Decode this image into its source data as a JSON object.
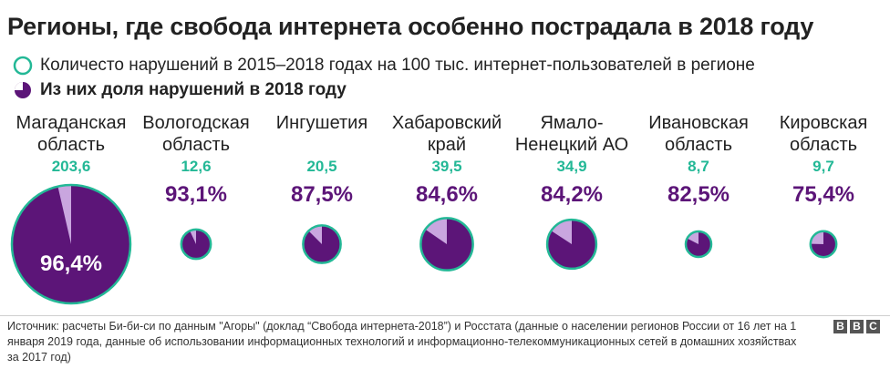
{
  "title": "Регионы, где свобода интернета особенно пострадала в 2018 году",
  "legend": {
    "total_label": "Количесто нарушений в 2015–2018 годах на 100 тыс. интернет-пользователей в регионе",
    "share_label": "Из них доля нарушений в 2018 году"
  },
  "colors": {
    "accent_teal": "#23b896",
    "purple": "#5c1578",
    "light_purple": "#c9a6df"
  },
  "chart_data": {
    "type": "pie",
    "categories": [
      "Магаданская область",
      "Вологодская область",
      "Ингушетия",
      "Хабаровский край",
      "Ямало-Ненецкий АО",
      "Ивановская область",
      "Кировская область"
    ],
    "regions": [
      {
        "name_lines": [
          "Магаданская",
          "область"
        ],
        "total": "203,6",
        "share": "96,4%",
        "total_value": 203.6,
        "share_value": 96.4
      },
      {
        "name_lines": [
          "Вологодская",
          "область"
        ],
        "total": "12,6",
        "share": "93,1%",
        "total_value": 12.6,
        "share_value": 93.1
      },
      {
        "name_lines": [
          "Ингушетия"
        ],
        "total": "20,5",
        "share": "87,5%",
        "total_value": 20.5,
        "share_value": 87.5
      },
      {
        "name_lines": [
          "Хабаровский",
          "край"
        ],
        "total": "39,5",
        "share": "84,6%",
        "total_value": 39.5,
        "share_value": 84.6
      },
      {
        "name_lines": [
          "Ямало-",
          "Ненецкий АО"
        ],
        "total": "34,9",
        "share": "84,2%",
        "total_value": 34.9,
        "share_value": 84.2
      },
      {
        "name_lines": [
          "Ивановская",
          "область"
        ],
        "total": "8,7",
        "share": "82,5%",
        "total_value": 8.7,
        "share_value": 82.5
      },
      {
        "name_lines": [
          "Кировская",
          "область"
        ],
        "total": "9,7",
        "share": "75,4%",
        "total_value": 9.7,
        "share_value": 75.4
      }
    ]
  },
  "source_text": "Источник: расчеты Би-би-си по данным \"Агоры\" (доклад “Свобода интернета-2018”) и Росстата (данные о населении регионов России от 16 лет на 1 января 2019 года, данные об использовании информационных технологий и информационно-телекоммуникационных сетей в домашних хозяйствах за 2017 год)",
  "logo": {
    "letters": [
      "B",
      "B",
      "C"
    ]
  }
}
